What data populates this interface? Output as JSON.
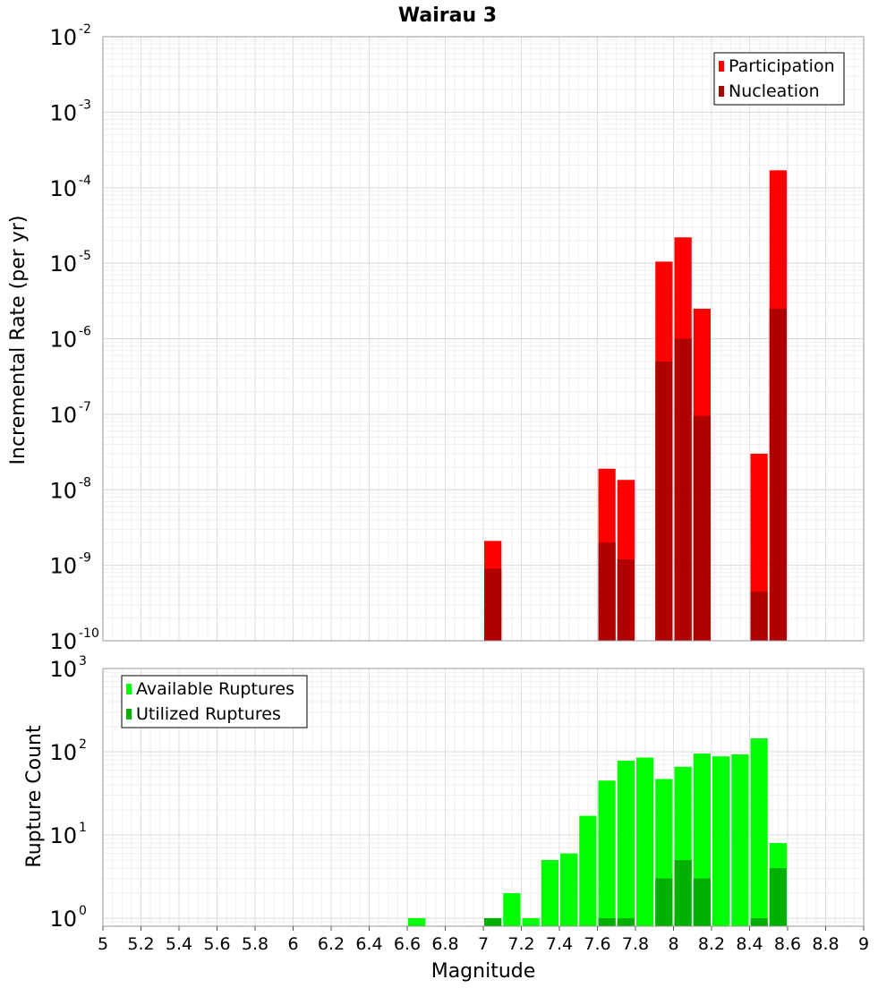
{
  "chart_data": [
    {
      "type": "bar",
      "title": "Wairau 3",
      "ylabel": "Incremental Rate (per yr)",
      "yscale": "log",
      "ylim": [
        1e-10,
        0.01
      ],
      "xlim": [
        5,
        9
      ],
      "legend_position": "top-right",
      "series": [
        {
          "name": "Participation",
          "color": "#ff0000",
          "points": [
            {
              "x": 7.05,
              "y": 2.1e-09
            },
            {
              "x": 7.65,
              "y": 1.9e-08
            },
            {
              "x": 7.75,
              "y": 1.35e-08
            },
            {
              "x": 7.95,
              "y": 1.05e-05
            },
            {
              "x": 8.05,
              "y": 2.2e-05
            },
            {
              "x": 8.15,
              "y": 2.5e-06
            },
            {
              "x": 8.45,
              "y": 3e-08
            },
            {
              "x": 8.55,
              "y": 0.00017
            }
          ]
        },
        {
          "name": "Nucleation",
          "color": "#b00000",
          "points": [
            {
              "x": 7.05,
              "y": 9e-10
            },
            {
              "x": 7.65,
              "y": 2e-09
            },
            {
              "x": 7.75,
              "y": 1.2e-09
            },
            {
              "x": 7.95,
              "y": 5e-07
            },
            {
              "x": 8.05,
              "y": 1e-06
            },
            {
              "x": 8.15,
              "y": 9.5e-08
            },
            {
              "x": 8.45,
              "y": 4.5e-10
            },
            {
              "x": 8.55,
              "y": 2.5e-06
            }
          ]
        }
      ],
      "y_ticks": [
        {
          "base": "10",
          "exp": "-2",
          "value": 0.01
        },
        {
          "base": "10",
          "exp": "-3",
          "value": 0.001
        },
        {
          "base": "10",
          "exp": "-4",
          "value": 0.0001
        },
        {
          "base": "10",
          "exp": "-5",
          "value": 1e-05
        },
        {
          "base": "10",
          "exp": "-6",
          "value": 1e-06
        },
        {
          "base": "10",
          "exp": "-7",
          "value": 1e-07
        },
        {
          "base": "10",
          "exp": "-8",
          "value": 1e-08
        },
        {
          "base": "10",
          "exp": "-9",
          "value": 1e-09
        },
        {
          "base": "10",
          "exp": "-10",
          "value": 1e-10
        }
      ]
    },
    {
      "type": "bar",
      "xlabel": "Magnitude",
      "ylabel": "Rupture Count",
      "yscale": "log",
      "ylim": [
        0.8,
        1000
      ],
      "xlim": [
        5,
        9
      ],
      "legend_position": "top-left",
      "x_ticks": [
        "5",
        "5.2",
        "5.4",
        "5.6",
        "5.8",
        "6",
        "6.2",
        "6.4",
        "6.6",
        "6.8",
        "7",
        "7.2",
        "7.4",
        "7.6",
        "7.8",
        "8",
        "8.2",
        "8.4",
        "8.6",
        "8.8",
        "9"
      ],
      "series": [
        {
          "name": "Available Ruptures",
          "color": "#00ff00",
          "points": [
            {
              "x": 6.65,
              "y": 1
            },
            {
              "x": 7.05,
              "y": 1
            },
            {
              "x": 7.15,
              "y": 2
            },
            {
              "x": 7.25,
              "y": 1
            },
            {
              "x": 7.35,
              "y": 5
            },
            {
              "x": 7.45,
              "y": 6
            },
            {
              "x": 7.55,
              "y": 17
            },
            {
              "x": 7.65,
              "y": 45
            },
            {
              "x": 7.75,
              "y": 78
            },
            {
              "x": 7.85,
              "y": 85
            },
            {
              "x": 7.95,
              "y": 47
            },
            {
              "x": 8.05,
              "y": 66
            },
            {
              "x": 8.15,
              "y": 95
            },
            {
              "x": 8.25,
              "y": 88
            },
            {
              "x": 8.35,
              "y": 93
            },
            {
              "x": 8.45,
              "y": 145
            },
            {
              "x": 8.55,
              "y": 8
            }
          ]
        },
        {
          "name": "Utilized Ruptures",
          "color": "#00b000",
          "points": [
            {
              "x": 7.05,
              "y": 1
            },
            {
              "x": 7.65,
              "y": 1
            },
            {
              "x": 7.75,
              "y": 1
            },
            {
              "x": 7.95,
              "y": 3
            },
            {
              "x": 8.05,
              "y": 5
            },
            {
              "x": 8.15,
              "y": 3
            },
            {
              "x": 8.45,
              "y": 1
            },
            {
              "x": 8.55,
              "y": 4
            }
          ]
        }
      ],
      "y_ticks": [
        {
          "base": "10",
          "exp": "3",
          "value": 1000
        },
        {
          "base": "10",
          "exp": "2",
          "value": 100
        },
        {
          "base": "10",
          "exp": "1",
          "value": 10
        },
        {
          "base": "10",
          "exp": "0",
          "value": 1
        }
      ]
    }
  ]
}
